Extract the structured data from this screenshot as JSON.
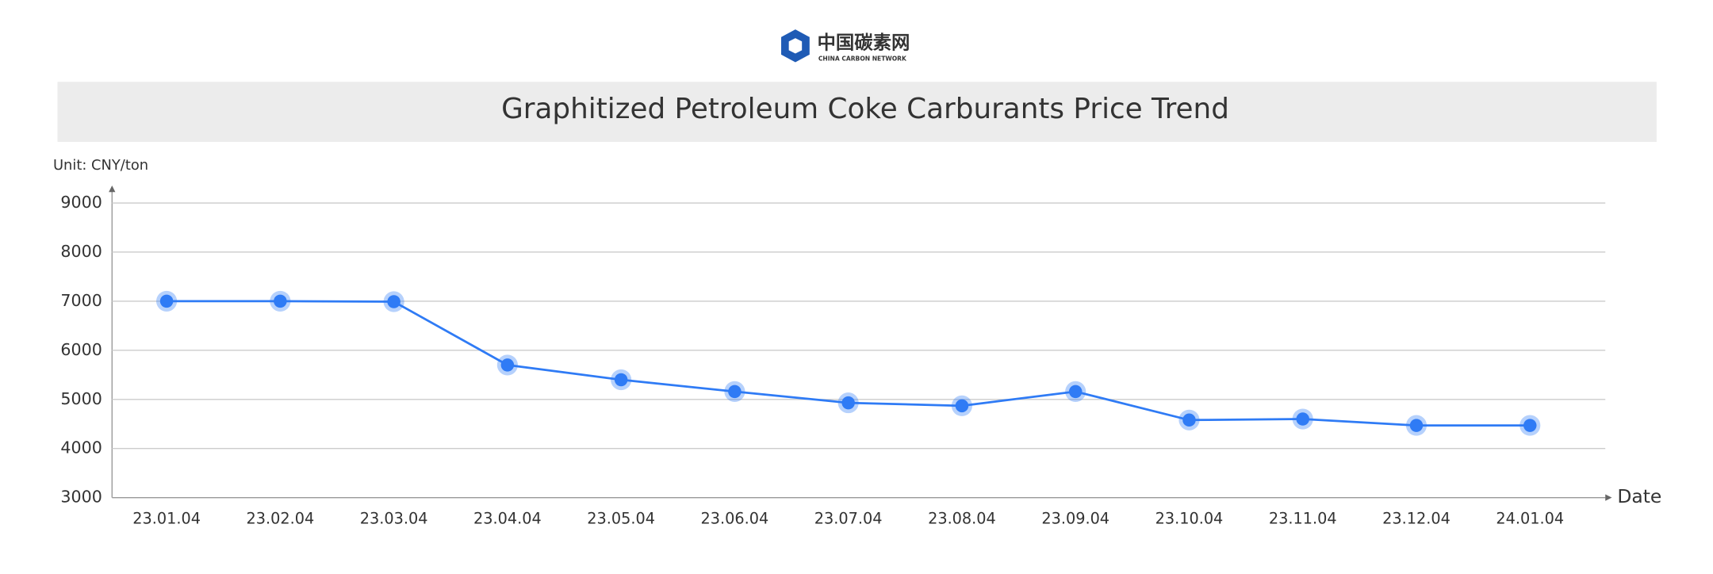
{
  "logo": {
    "name": "中国碳素网",
    "subtitle": "CHINA CARBON NETWORK"
  },
  "chart_data": {
    "type": "line",
    "title": "Graphitized Petroleum Coke Carburants Price Trend",
    "y_label": "Unit: CNY/ton",
    "x_label": "Date",
    "categories": [
      "23.01.04",
      "23.02.04",
      "23.03.04",
      "23.04.04",
      "23.05.04",
      "23.06.04",
      "23.07.04",
      "23.08.04",
      "23.09.04",
      "23.10.04",
      "23.11.04",
      "23.12.04",
      "24.01.04"
    ],
    "values": [
      7000,
      7000,
      6990,
      5700,
      5400,
      5160,
      4930,
      4870,
      5160,
      4580,
      4600,
      4470,
      4470
    ],
    "color": "#2f7bf5",
    "ylim": [
      3000,
      9000
    ],
    "yticks": [
      3000,
      4000,
      5000,
      6000,
      7000,
      8000,
      9000
    ],
    "grid": true
  }
}
